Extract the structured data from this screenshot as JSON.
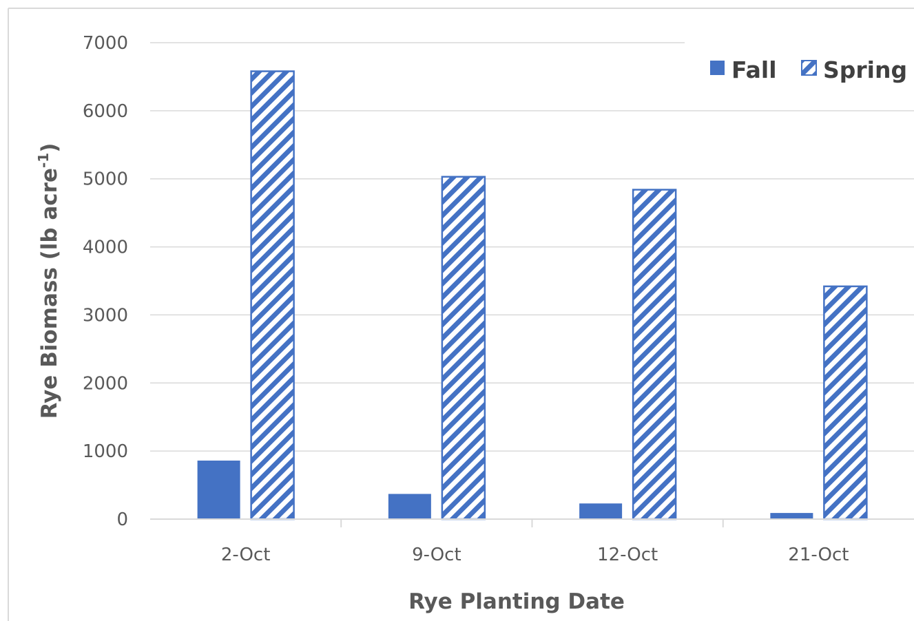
{
  "chart_data": {
    "type": "bar",
    "categories": [
      "2-Oct",
      "9-Oct",
      "12-Oct",
      "21-Oct"
    ],
    "series": [
      {
        "name": "Fall",
        "values": [
          860,
          370,
          230,
          90
        ],
        "color": "#4472C4",
        "fill": "solid"
      },
      {
        "name": "Spring",
        "values": [
          6580,
          5030,
          4840,
          3420
        ],
        "color": "#4472C4",
        "fill": "hatched"
      }
    ],
    "title": "",
    "xlabel": "Rye Planting Date",
    "ylabel_main": "Rye Biomass (lb acre",
    "ylabel_sup": "-1",
    "ylabel_close": ")",
    "ylim": [
      0,
      7000
    ],
    "yticks": [
      "0",
      "1000",
      "2000",
      "3000",
      "4000",
      "5000",
      "6000",
      "7000"
    ],
    "grid": true,
    "legend_position": "top-right"
  }
}
